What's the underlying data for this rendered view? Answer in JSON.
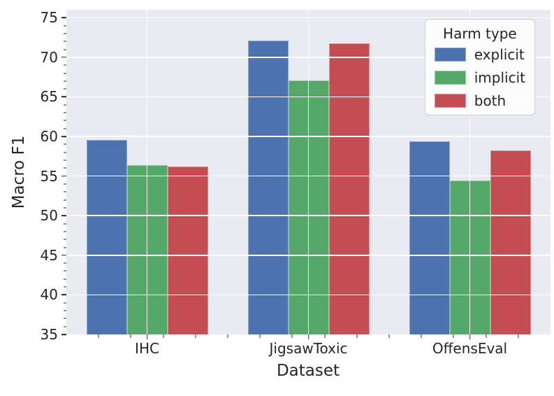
{
  "chart_data": {
    "type": "bar",
    "title": "",
    "xlabel": "Dataset",
    "ylabel": "Macro F1",
    "categories": [
      "IHC",
      "JigsawToxic",
      "OffensEval"
    ],
    "series": [
      {
        "name": "explicit",
        "color": "#4C72B0",
        "values": [
          59.6,
          72.1,
          59.4
        ]
      },
      {
        "name": "implicit",
        "color": "#55A868",
        "values": [
          56.4,
          67.1,
          54.4
        ]
      },
      {
        "name": "both",
        "color": "#C44E52",
        "values": [
          56.2,
          71.8,
          58.2
        ]
      }
    ],
    "ylim": [
      35,
      76
    ],
    "yticks": [
      35,
      40,
      45,
      50,
      55,
      60,
      65,
      70,
      75
    ],
    "y_minor_step": 1,
    "x_minor_step": 0.2,
    "grid": "on",
    "grid_above_bars": true,
    "legend_position": "upper right"
  },
  "legend": {
    "title": "Harm type"
  },
  "style": {
    "plot_bg": "#EAEAF2",
    "grid_color": "#FFFFFF",
    "text_color": "#262626",
    "figure_bg": "#FFFFFF"
  }
}
